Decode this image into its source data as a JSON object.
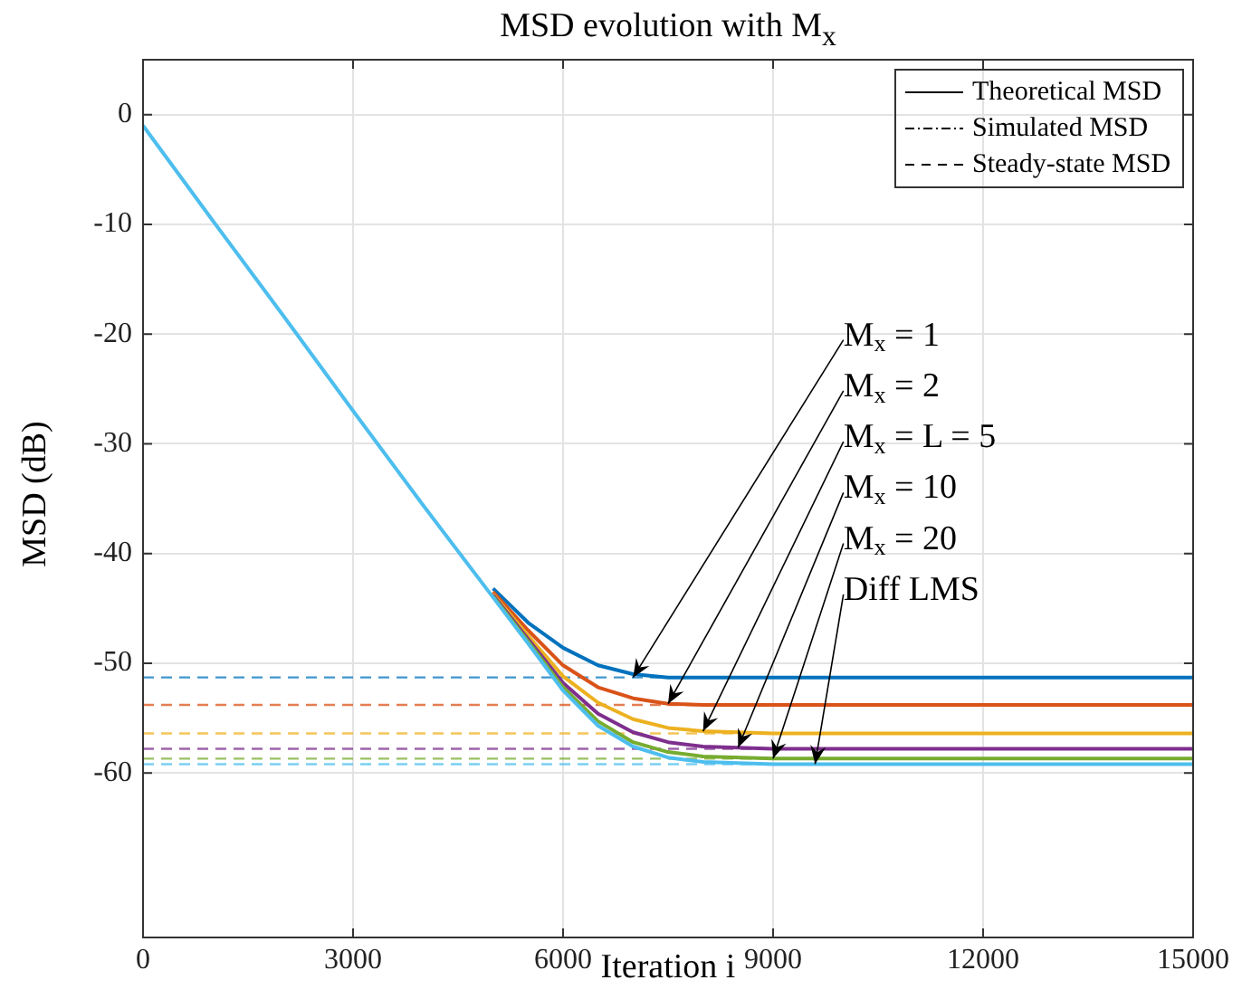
{
  "chart_data": {
    "type": "line",
    "title": "MSD evolution with M$_{x}$",
    "xlabel": "Iteration i",
    "ylabel": "MSD (dB)",
    "x": [
      0,
      1000,
      2000,
      3000,
      4000,
      5000,
      5500,
      6000,
      6500,
      7000,
      7500,
      8000,
      9000,
      10000,
      12000,
      15000
    ],
    "series": [
      {
        "color": "#0072bd",
        "values": [
          null,
          null,
          null,
          null,
          null,
          -43.2,
          -46.3,
          -48.6,
          -50.2,
          -51.0,
          -51.3,
          -51.3,
          -51.3,
          -51.3,
          -51.3,
          -51.3
        ]
      },
      {
        "color": "#d95319",
        "values": [
          null,
          null,
          null,
          null,
          null,
          -43.5,
          -47.0,
          -50.2,
          -52.2,
          -53.2,
          -53.7,
          -53.8,
          -53.8,
          -53.8,
          -53.8,
          -53.8
        ]
      },
      {
        "color": "#edb120",
        "values": [
          null,
          null,
          null,
          null,
          null,
          -43.7,
          -47.5,
          -51.2,
          -53.6,
          -55.1,
          -55.9,
          -56.2,
          -56.4,
          -56.4,
          -56.4,
          -56.4
        ]
      },
      {
        "color": "#7e2f8e",
        "values": [
          null,
          null,
          null,
          null,
          null,
          -43.8,
          -47.8,
          -51.8,
          -54.6,
          -56.3,
          -57.2,
          -57.6,
          -57.8,
          -57.8,
          -57.8,
          -57.8
        ]
      },
      {
        "color": "#77ac30",
        "values": [
          null,
          null,
          null,
          null,
          null,
          -43.9,
          -48.0,
          -52.2,
          -55.3,
          -57.2,
          -58.1,
          -58.5,
          -58.7,
          -58.7,
          -58.7,
          -58.7
        ]
      },
      {
        "color": "#4dbeee",
        "values": [
          -1,
          -9.7,
          -18.3,
          -27,
          -35.6,
          -44.0,
          -48.2,
          -52.5,
          -55.7,
          -57.6,
          -58.6,
          -59.0,
          -59.2,
          -59.2,
          -59.2,
          -59.2
        ]
      }
    ],
    "ref_lines": [
      {
        "axis": "y",
        "value": -51.3,
        "color": "#0072bd",
        "line_style": "dashed"
      },
      {
        "axis": "y",
        "value": -53.8,
        "color": "#d95319",
        "line_style": "dashed"
      },
      {
        "axis": "y",
        "value": -56.4,
        "color": "#edb120",
        "line_style": "dashed"
      },
      {
        "axis": "y",
        "value": -57.8,
        "color": "#7e2f8e",
        "line_style": "dashed"
      },
      {
        "axis": "y",
        "value": -58.7,
        "color": "#77ac30",
        "line_style": "dashed"
      },
      {
        "axis": "y",
        "value": -59.2,
        "color": "#4dbeee",
        "line_style": "dashed"
      }
    ],
    "annotations": [
      "Theoretical MSD",
      "Simulated MSD",
      "Steady-state MSD",
      {
        "text": "M$_{x}$ = 1",
        "x": 7000,
        "y": -51.3
      },
      {
        "text": "M$_{x}$ = 2",
        "x": 7500,
        "y": -53.7
      },
      {
        "text": "M$_{x}$ = L = 5",
        "x": 8000,
        "y": -56.2
      },
      {
        "text": "M$_{x}$ = 10",
        "x": 8500,
        "y": -57.7
      },
      {
        "text": "M$_{x}$ = 20",
        "x": 9000,
        "y": -58.7
      },
      {
        "text": "Diff LMS",
        "x": 9600,
        "y": -59.2
      }
    ],
    "xlim": [
      0,
      15000
    ],
    "xticks": [
      0,
      3000,
      6000,
      9000,
      12000,
      15000
    ],
    "ylim": [
      -75,
      5
    ],
    "yticks": [
      -60,
      -50,
      -40,
      -30,
      -20,
      -10,
      0
    ],
    "grid": true,
    "marker": "none",
    "line_style": "solid"
  }
}
